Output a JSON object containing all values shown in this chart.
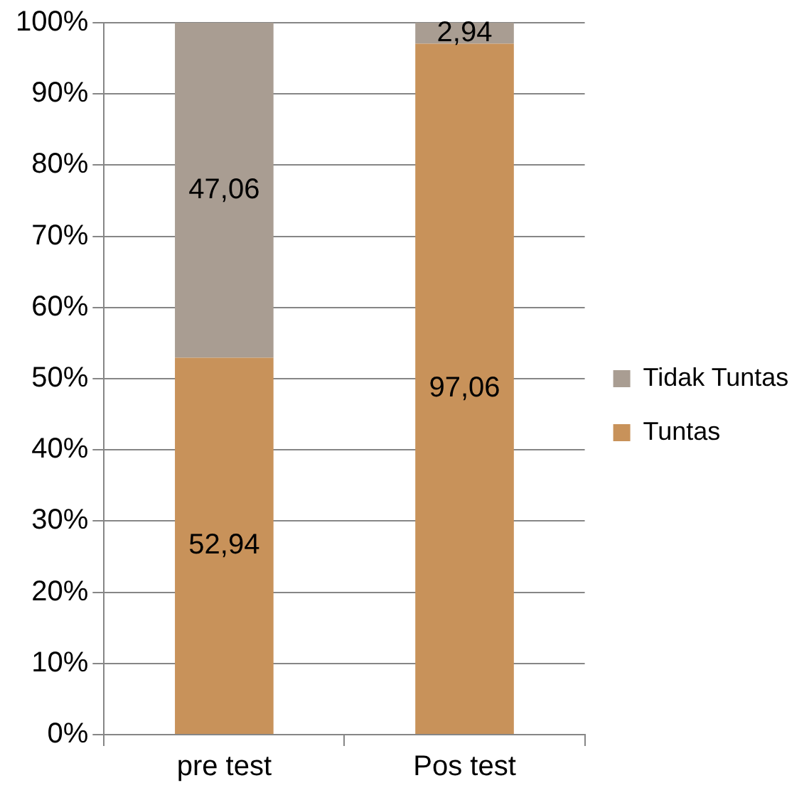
{
  "chart_data": {
    "type": "bar",
    "stacked": true,
    "categories": [
      "pre test",
      "Pos test"
    ],
    "series": [
      {
        "name": "Tuntas",
        "color": "#c8925a",
        "values": [
          52.94,
          97.06
        ],
        "value_labels": [
          "52,94",
          "97,06"
        ]
      },
      {
        "name": "Tidak Tuntas",
        "color": "#a99d92",
        "values": [
          47.06,
          2.94
        ],
        "value_labels": [
          "47,06",
          "2,94"
        ]
      }
    ],
    "ylim": [
      0,
      100
    ],
    "yticks": [
      {
        "value": 0,
        "label": "0%"
      },
      {
        "value": 10,
        "label": "10%"
      },
      {
        "value": 20,
        "label": "20%"
      },
      {
        "value": 30,
        "label": "30%"
      },
      {
        "value": 40,
        "label": "40%"
      },
      {
        "value": 50,
        "label": "50%"
      },
      {
        "value": 60,
        "label": "60%"
      },
      {
        "value": 70,
        "label": "70%"
      },
      {
        "value": 80,
        "label": "80%"
      },
      {
        "value": 90,
        "label": "90%"
      },
      {
        "value": 100,
        "label": "100%"
      }
    ],
    "grid": "y",
    "legend": "right"
  }
}
